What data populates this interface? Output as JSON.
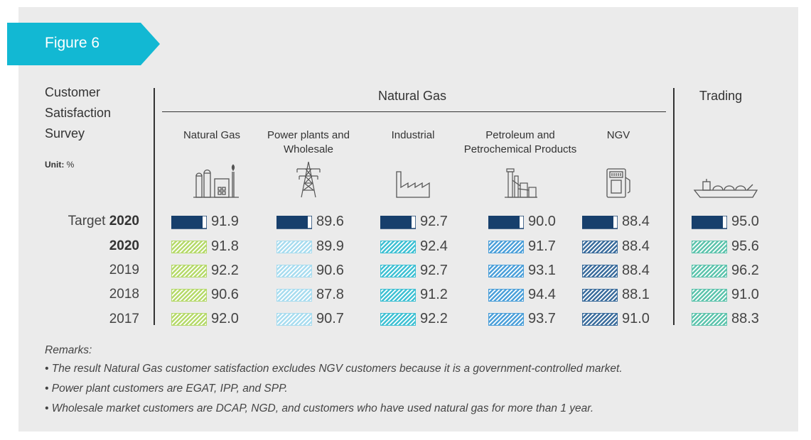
{
  "figure_label": "Figure 6",
  "side_heading": [
    "Customer",
    "Satisfaction",
    "Survey"
  ],
  "unit": {
    "label": "Unit:",
    "value": "%"
  },
  "group_headers": {
    "natural_gas": "Natural Gas",
    "trading": "Trading"
  },
  "remarks": {
    "title": "Remarks:",
    "items": [
      "• The result Natural Gas customer satisfaction excludes NGV customers because it is a government-controlled market.",
      "• Power plant customers are EGAT, IPP, and SPP.",
      "• Wholesale market customers are DCAP, NGD, and customers who have used natural gas for more than 1 year."
    ]
  },
  "chart_data": {
    "type": "table",
    "rows": [
      {
        "prefix": "Target",
        "year": "2020",
        "kind": "target"
      },
      {
        "prefix": "",
        "year": "2020",
        "kind": "actual",
        "bold": true
      },
      {
        "prefix": "",
        "year": "2019",
        "kind": "actual"
      },
      {
        "prefix": "",
        "year": "2018",
        "kind": "actual"
      },
      {
        "prefix": "",
        "year": "2017",
        "kind": "actual"
      }
    ],
    "series": [
      {
        "name": "Natural Gas",
        "icon": "gas-plant-icon",
        "color": "#b5d96a",
        "values": [
          "91.9",
          "91.8",
          "92.2",
          "90.6",
          "92.0"
        ]
      },
      {
        "name": "Power plants and Wholesale",
        "icon": "transmission-tower-icon",
        "color": "#a7dcef",
        "values": [
          "89.6",
          "89.9",
          "90.6",
          "87.8",
          "90.7"
        ]
      },
      {
        "name": "Industrial",
        "icon": "factory-icon",
        "color": "#3ec0d3",
        "values": [
          "92.7",
          "92.4",
          "92.7",
          "91.2",
          "92.2"
        ]
      },
      {
        "name": "Petroleum and Petrochemical Products",
        "icon": "refinery-icon",
        "color": "#4b9fd9",
        "values": [
          "90.0",
          "91.7",
          "93.1",
          "94.4",
          "93.7"
        ]
      },
      {
        "name": "NGV",
        "icon": "fuel-pump-icon",
        "color": "#3a6c9c",
        "values": [
          "88.4",
          "88.4",
          "88.4",
          "88.1",
          "91.0"
        ]
      },
      {
        "name": "Trading",
        "icon": "lng-ship-icon",
        "color": "#5cc3ac",
        "values": [
          "95.0",
          "95.6",
          "96.2",
          "91.0",
          "88.3"
        ]
      }
    ],
    "target_color": "#173f6c"
  }
}
